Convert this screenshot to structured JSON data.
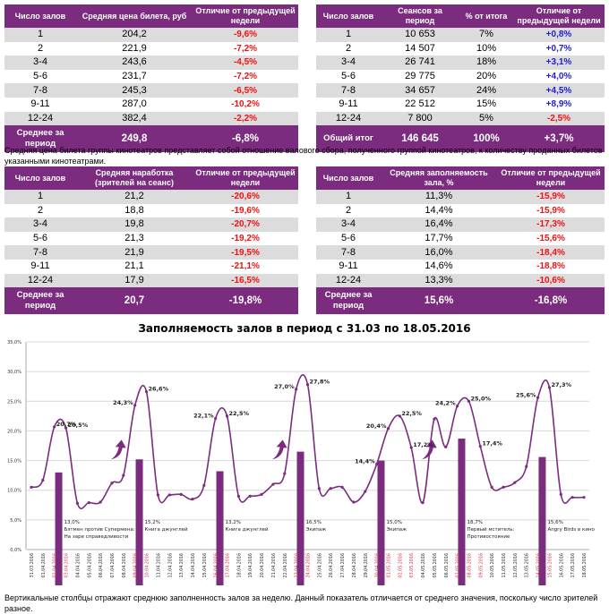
{
  "table1": {
    "headers": [
      "Число залов",
      "Средняя цена билета, руб",
      "Отличие от предыдущей недели"
    ],
    "rows": [
      {
        "label": "1",
        "value": "204,2",
        "diff": "-9,6%"
      },
      {
        "label": "2",
        "value": "221,9",
        "diff": "-7,2%"
      },
      {
        "label": "3-4",
        "value": "243,6",
        "diff": "-4,5%"
      },
      {
        "label": "5-6",
        "value": "231,7",
        "diff": "-7,2%"
      },
      {
        "label": "7-8",
        "value": "245,3",
        "diff": "-6,5%"
      },
      {
        "label": "9-11",
        "value": "287,0",
        "diff": "-10,2%"
      },
      {
        "label": "12-24",
        "value": "382,4",
        "diff": "-2,2%"
      }
    ],
    "total": {
      "label": "Среднее за период",
      "value": "249,8",
      "diff": "-6,8%"
    }
  },
  "table2": {
    "headers": [
      "Число залов",
      "Сеансов за период",
      "% от итога",
      "Отличие от предыдущей недели"
    ],
    "rows": [
      {
        "label": "1",
        "value": "10 653",
        "share": "7%",
        "diff": "+0,8%"
      },
      {
        "label": "2",
        "value": "14 507",
        "share": "10%",
        "diff": "+0,7%"
      },
      {
        "label": "3-4",
        "value": "26 741",
        "share": "18%",
        "diff": "+3,1%"
      },
      {
        "label": "5-6",
        "value": "29 775",
        "share": "20%",
        "diff": "+4,0%"
      },
      {
        "label": "7-8",
        "value": "34 657",
        "share": "24%",
        "diff": "+4,5%"
      },
      {
        "label": "9-11",
        "value": "22 512",
        "share": "15%",
        "diff": "+8,9%"
      },
      {
        "label": "12-24",
        "value": "7 800",
        "share": "5%",
        "diff": "-2,5%"
      }
    ],
    "total": {
      "label": "Общий итог",
      "value": "146 645",
      "share": "100%",
      "diff": "+3,7%"
    }
  },
  "note1": "Средняя цена билета группы кинотеатров представляет собой отношение валового сбора, полученного группой кинотеатров, к количеству проданных билетов указанными кинотеатрами.",
  "table3": {
    "headers": [
      "Число залов",
      "Средняя наработка (зрителей на сеанс)",
      "Отличие от предыдущей недели"
    ],
    "rows": [
      {
        "label": "1",
        "value": "21,2",
        "diff": "-20,6%"
      },
      {
        "label": "2",
        "value": "18,8",
        "diff": "-19,6%"
      },
      {
        "label": "3-4",
        "value": "19,8",
        "diff": "-20,7%"
      },
      {
        "label": "5-6",
        "value": "21,3",
        "diff": "-19,2%"
      },
      {
        "label": "7-8",
        "value": "21,9",
        "diff": "-19,5%"
      },
      {
        "label": "9-11",
        "value": "21,1",
        "diff": "-21,1%"
      },
      {
        "label": "12-24",
        "value": "17,9",
        "diff": "-16,5%"
      }
    ],
    "total": {
      "label": "Среднее за период",
      "value": "20,7",
      "diff": "-19,8%"
    }
  },
  "table4": {
    "headers": [
      "Число залов",
      "Средняя заполняемость зала, %",
      "Отличие от предыдущей недели"
    ],
    "rows": [
      {
        "label": "1",
        "value": "11,3%",
        "diff": "-15,9%"
      },
      {
        "label": "2",
        "value": "14,4%",
        "diff": "-15,9%"
      },
      {
        "label": "3-4",
        "value": "16,4%",
        "diff": "-17,3%"
      },
      {
        "label": "5-6",
        "value": "17,7%",
        "diff": "-15,6%"
      },
      {
        "label": "7-8",
        "value": "16,0%",
        "diff": "-18,4%"
      },
      {
        "label": "9-11",
        "value": "14,6%",
        "diff": "-18,8%"
      },
      {
        "label": "12-24",
        "value": "13,3%",
        "diff": "-10,6%"
      }
    ],
    "total": {
      "label": "Среднее за период",
      "value": "15,6%",
      "diff": "-16,8%"
    }
  },
  "note2": "Вертикальные столбцы отражают среднюю заполненность залов за неделю. Данный показатель отличается от среднего значения, поскольку число зрителей разное.",
  "colors": {
    "accent": "#7b2c7f",
    "negative": "#ee1111",
    "positive": "#1f1fd0",
    "weekend": "#d03040"
  },
  "chart_data": {
    "type": "line",
    "title": "Заполняемость залов в период с 31.03 по 18.05.2016",
    "xlabel": "",
    "ylabel": "",
    "ylim": [
      0,
      35
    ],
    "yticks": [
      "0,0%",
      "5,0%",
      "10,0%",
      "15,0%",
      "20,0%",
      "25,0%",
      "30,0%",
      "35,0%"
    ],
    "grid": true,
    "x": [
      "31.03.2016",
      "01.04.2016",
      "02.04.2016",
      "03.04.2016",
      "04.04.2016",
      "05.04.2016",
      "06.04.2016",
      "07.04.2016",
      "08.04.2016",
      "09.04.2016",
      "10.04.2016",
      "11.04.2016",
      "12.04.2016",
      "13.04.2016",
      "14.04.2016",
      "15.04.2016",
      "16.04.2016",
      "17.04.2016",
      "18.04.2016",
      "19.04.2016",
      "20.04.2016",
      "21.04.2016",
      "22.04.2016",
      "23.04.2016",
      "24.04.2016",
      "25.04.2016",
      "26.04.2016",
      "27.04.2016",
      "28.04.2016",
      "29.04.2016",
      "30.04.2016",
      "01.05.2016",
      "02.05.2016",
      "03.05.2016",
      "04.05.2016",
      "05.05.2016",
      "06.05.2016",
      "07.05.2016",
      "08.05.2016",
      "09.05.2016",
      "10.05.2016",
      "11.05.2016",
      "12.05.2016",
      "13.05.2016",
      "14.05.2016",
      "15.05.2016",
      "16.05.2016",
      "17.05.2016",
      "18.05.2016"
    ],
    "weekend_dates": [
      "02.04.2016",
      "03.04.2016",
      "09.04.2016",
      "10.04.2016",
      "16.04.2016",
      "17.04.2016",
      "23.04.2016",
      "24.04.2016",
      "30.04.2016",
      "01.05.2016",
      "02.05.2016",
      "03.05.2016",
      "07.05.2016",
      "08.05.2016",
      "09.05.2016",
      "14.05.2016",
      "15.05.2016"
    ],
    "series": [
      {
        "name": "Заполняемость",
        "values": [
          10.5,
          11.7,
          20.7,
          20.5,
          7.8,
          7.9,
          8.0,
          11.2,
          12.5,
          24.3,
          26.6,
          9.2,
          9.2,
          9.3,
          8.5,
          10.8,
          22.1,
          22.5,
          9.0,
          9.0,
          9.3,
          11.0,
          12.8,
          27.0,
          27.8,
          10.3,
          10.3,
          10.5,
          8.0,
          9.8,
          14.4,
          20.4,
          22.5,
          17.2,
          7.9,
          22.0,
          17.3,
          24.2,
          25.0,
          17.4,
          10.5,
          10.5,
          11.3,
          14.0,
          25.6,
          27.3,
          9.3,
          8.8,
          8.8
        ]
      }
    ],
    "point_labels": [
      {
        "index": 2,
        "text": "20,7%"
      },
      {
        "index": 3,
        "text": "20,5%"
      },
      {
        "index": 9,
        "text": "24,3%"
      },
      {
        "index": 10,
        "text": "26,6%"
      },
      {
        "index": 16,
        "text": "22,1%"
      },
      {
        "index": 17,
        "text": "22,5%"
      },
      {
        "index": 23,
        "text": "27,0%"
      },
      {
        "index": 24,
        "text": "27,8%"
      },
      {
        "index": 30,
        "text": "14,4%"
      },
      {
        "index": 31,
        "text": "20,4%"
      },
      {
        "index": 32,
        "text": "22,5%"
      },
      {
        "index": 33,
        "text": "17,2%"
      },
      {
        "index": 37,
        "text": "24,2%"
      },
      {
        "index": 38,
        "text": "25,0%"
      },
      {
        "index": 39,
        "text": "17,4%"
      },
      {
        "index": 44,
        "text": "25,6%"
      },
      {
        "index": 45,
        "text": "27,3%"
      }
    ],
    "bars": [
      {
        "index": 3,
        "value": 13.0,
        "label": "13,0%",
        "film": "Бэтмен против Супермена: На заре справедливости"
      },
      {
        "index": 10,
        "value": 15.2,
        "label": "15,2%",
        "film": "Книга джунглей"
      },
      {
        "index": 17,
        "value": 13.2,
        "label": "13,2%",
        "film": "Книга джунглей"
      },
      {
        "index": 24,
        "value": 16.5,
        "label": "16,5%",
        "film": "Экипаж"
      },
      {
        "index": 31,
        "value": 15.0,
        "label": "15,0%",
        "film": "Экипаж"
      },
      {
        "index": 38,
        "value": 18.7,
        "label": "18,7%",
        "film": "Первый мститель: Противостояние"
      },
      {
        "index": 45,
        "value": 15.6,
        "label": "15,6%",
        "film": "Angry Birds в кино"
      }
    ],
    "arrows_before_index": [
      9,
      23,
      36
    ]
  }
}
